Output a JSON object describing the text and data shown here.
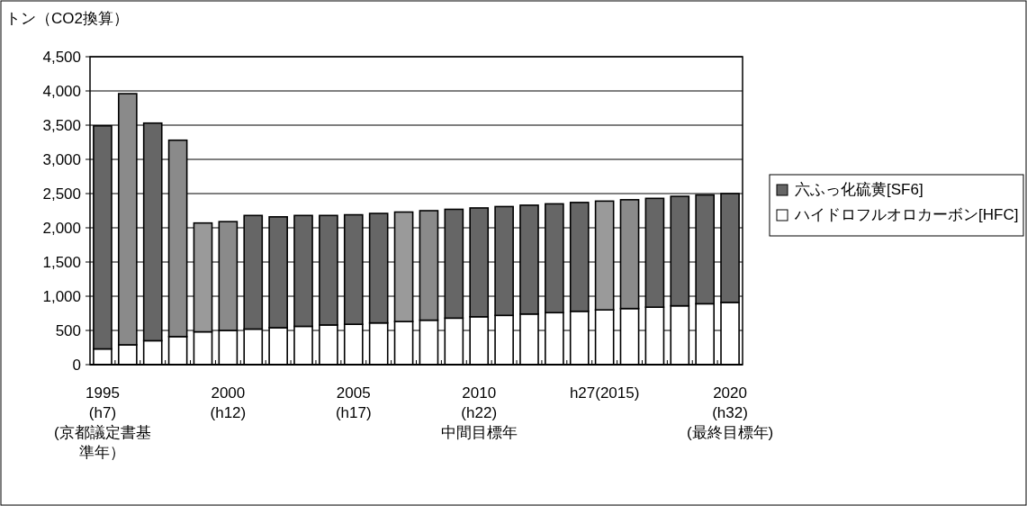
{
  "chart_data": {
    "type": "bar",
    "stacked": true,
    "ylabel": "トン（CO2換算）",
    "categories": [
      "1995\n(h7)\n(京都議定書基準年）",
      null,
      null,
      null,
      null,
      "2000\n(h12)",
      null,
      null,
      null,
      null,
      "2005\n(h17)",
      null,
      null,
      null,
      null,
      "2010\n(h22)\n中間目標年",
      null,
      null,
      null,
      null,
      "h27(2015)",
      null,
      null,
      null,
      null,
      "2020\n(h32)\n(最終目標年)"
    ],
    "series": [
      {
        "name": "ハイドロフルオロカーボン[HFC]",
        "color": "#ffffff",
        "values": [
          230,
          290,
          350,
          410,
          480,
          500,
          520,
          540,
          560,
          580,
          590,
          610,
          630,
          650,
          680,
          700,
          720,
          740,
          760,
          780,
          800,
          820,
          840,
          860,
          890,
          910
        ]
      },
      {
        "name": "六ふっ化硫黄[SF6]",
        "color": "#666666",
        "colors": [
          "#666666",
          "#8a8a8a",
          "#666666",
          "#8a8a8a",
          "#9a9a9a",
          "#8a8a8a",
          "#666666",
          "#666666",
          "#666666",
          "#666666",
          "#666666",
          "#666666",
          "#9a9a9a",
          "#8a8a8a",
          "#666666",
          "#666666",
          "#666666",
          "#666666",
          "#666666",
          "#666666",
          "#9a9a9a",
          "#8a8a8a",
          "#666666",
          "#666666",
          "#666666",
          "#666666"
        ],
        "values": [
          3260,
          3670,
          3180,
          2870,
          1590,
          1590,
          1660,
          1620,
          1620,
          1600,
          1600,
          1600,
          1600,
          1600,
          1590,
          1590,
          1590,
          1590,
          1590,
          1590,
          1590,
          1590,
          1590,
          1600,
          1590,
          1590
        ]
      }
    ],
    "ylim": [
      0,
      4500
    ],
    "yticks": [
      0,
      500,
      {
        "value": 1000,
        "label": "1,000"
      },
      {
        "value": 1500,
        "label": "1,500"
      },
      {
        "value": 2000,
        "label": "2,000"
      },
      {
        "value": 2500,
        "label": "2,500"
      },
      {
        "value": 3000,
        "label": "3,000"
      },
      {
        "value": 3500,
        "label": "3,500"
      },
      {
        "value": 4000,
        "label": "4,000"
      },
      {
        "value": 4500,
        "label": "4,500"
      }
    ],
    "grid": "y",
    "legend": "right"
  }
}
